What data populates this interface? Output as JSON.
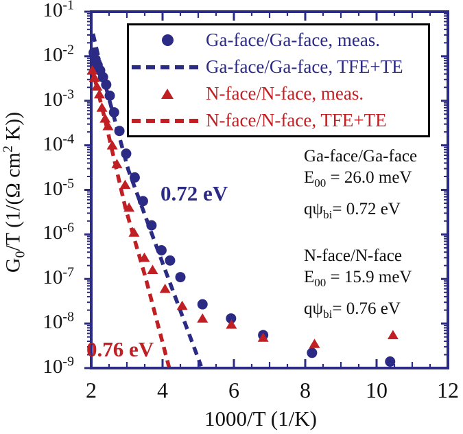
{
  "colors": {
    "navy": "#2b2a84",
    "red": "#c01f23",
    "black": "#111111",
    "background": "#ffffff"
  },
  "legend": {
    "items": [
      {
        "label": "Ga-face/Ga-face, meas.",
        "marker": "circle",
        "color": "#2b2a84"
      },
      {
        "label": "Ga-face/Ga-face, TFE+TE",
        "marker": "dash",
        "color": "#2b2a84"
      },
      {
        "label": "N-face/N-face, meas.",
        "marker": "triangle",
        "color": "#c01f23"
      },
      {
        "label": "N-face/N-face, TFE+TE",
        "marker": "dash",
        "color": "#c01f23"
      }
    ]
  },
  "annotations": {
    "ga": {
      "title": "Ga-face/Ga-face",
      "e00": {
        "pre": "E",
        "sub": "00",
        "post": " =  26.0 meV"
      },
      "qpsi": {
        "pre": "qψ",
        "sub": "bi",
        "post": "= 0.72 eV"
      }
    },
    "n": {
      "title": "N-face/N-face",
      "e00": {
        "pre": "E",
        "sub": "00",
        "post": " = 15.9 meV"
      },
      "qpsi": {
        "pre": "qψ",
        "sub": "bi",
        "post": "= 0.76 eV"
      }
    }
  },
  "slope_labels": {
    "blue": "0.72 eV",
    "red": "0.76 eV"
  },
  "axes": {
    "xlabel": "1000/T (1/K)",
    "ylabel_parts": {
      "pre": "G",
      "sub": "0",
      "mid": "/T (1/(Ω cm",
      "sup": "2",
      "end": " K))"
    }
  },
  "chart_data": {
    "type": "scatter",
    "title": "",
    "xlabel": "1000/T (1/K)",
    "ylabel": "G0/T (1/(Ohm cm^2 K))",
    "xlim": [
      2,
      12
    ],
    "x_major_ticks": [
      2,
      4,
      6,
      8,
      10,
      12
    ],
    "x_minor_step": 0.5,
    "y_scale": "log",
    "y_exponent_range": [
      -1,
      -9
    ],
    "y_tick_exponents": [
      -1,
      -2,
      -3,
      -4,
      -5,
      -6,
      -7,
      -8,
      -9
    ],
    "grid": false,
    "legend_position": "upper center",
    "series": [
      {
        "name": "Ga-face/Ga-face, meas.",
        "kind": "scatter",
        "marker": "circle",
        "color": "#2b2a84",
        "points": [
          [
            2.07,
            0.012
          ],
          [
            2.12,
            0.0085
          ],
          [
            2.18,
            0.0063
          ],
          [
            2.25,
            0.0048
          ],
          [
            2.33,
            0.0034
          ],
          [
            2.42,
            0.0023
          ],
          [
            2.52,
            0.0013
          ],
          [
            2.64,
            0.00055
          ],
          [
            2.79,
            0.00021
          ],
          [
            2.98,
            6.5e-05
          ],
          [
            3.22,
            1.9e-05
          ],
          [
            3.45,
            5.6e-06
          ],
          [
            3.69,
            1.6e-06
          ],
          [
            3.97,
            4.4e-07
          ],
          [
            4.21,
            2.6e-07
          ],
          [
            4.5,
            1.1e-07
          ],
          [
            5.12,
            2.7e-08
          ],
          [
            5.92,
            1.3e-08
          ],
          [
            6.82,
            5.5e-09
          ],
          [
            8.19,
            2.2e-09
          ],
          [
            10.38,
            1.4e-09
          ]
        ]
      },
      {
        "name": "Ga-face/Ga-face, TFE+TE",
        "kind": "line",
        "dashed": true,
        "color": "#2b2a84",
        "points": [
          [
            2.05,
            0.032
          ],
          [
            2.33,
            0.0035
          ],
          [
            2.6,
            0.00056
          ],
          [
            3.04,
            2.8e-05
          ],
          [
            3.5,
            2.8e-06
          ],
          [
            4.06,
            1.7e-07
          ],
          [
            5.08,
            1.1e-09
          ]
        ]
      },
      {
        "name": "N-face/N-face, meas.",
        "kind": "scatter",
        "marker": "triangle",
        "color": "#c01f23",
        "points": [
          [
            2.03,
            0.0048
          ],
          [
            2.09,
            0.0033
          ],
          [
            2.16,
            0.0021
          ],
          [
            2.23,
            0.0014
          ],
          [
            2.3,
            0.0007
          ],
          [
            2.39,
            0.0004
          ],
          [
            2.47,
            0.00027
          ],
          [
            2.59,
            0.0001
          ],
          [
            2.72,
            3.8e-05
          ],
          [
            2.95,
            1.3e-05
          ],
          [
            3.06,
            4e-06
          ],
          [
            3.2,
            1.1e-06
          ],
          [
            3.49,
            3e-07
          ],
          [
            3.72,
            1.6e-07
          ],
          [
            4.07,
            6e-08
          ],
          [
            4.55,
            2.5e-08
          ],
          [
            5.12,
            1.3e-08
          ],
          [
            5.93,
            9.5e-09
          ],
          [
            6.82,
            4.8e-09
          ],
          [
            8.26,
            3.5e-09
          ],
          [
            10.46,
            5.5e-09
          ]
        ]
      },
      {
        "name": "N-face/N-face, TFE+TE",
        "kind": "line",
        "dashed": true,
        "color": "#c01f23",
        "points": [
          [
            2.02,
            0.0055
          ],
          [
            2.37,
            0.00043
          ],
          [
            2.65,
            4.6e-05
          ],
          [
            2.96,
            3.9e-06
          ],
          [
            3.52,
            1.1e-07
          ],
          [
            4.18,
            1.05e-09
          ]
        ]
      }
    ],
    "annotations": [
      "Ga-face/Ga-face: E00 = 26.0 meV, q psi_bi = 0.72 eV",
      "N-face/N-face: E00 = 15.9 meV, q psi_bi = 0.76 eV",
      "slope label 0.72 eV (blue), slope label 0.76 eV (red)"
    ]
  }
}
